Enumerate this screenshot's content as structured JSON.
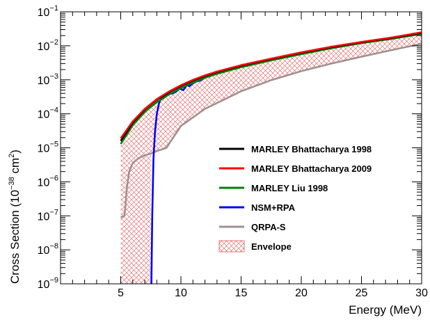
{
  "chart_data": {
    "type": "line",
    "xlabel": "Energy (MeV)",
    "ylabel": "Cross Section (10⁻³⁸ cm²)",
    "ylabel_parts": {
      "main": "Cross Section (10",
      "exp1": "−38",
      "mid": " cm",
      "exp2": "2",
      "end": ")"
    },
    "xlim": [
      0,
      30
    ],
    "ylim": [
      1e-09,
      0.1
    ],
    "y_scale": "log",
    "x_ticks": [
      5,
      10,
      15,
      20,
      25,
      30
    ],
    "y_ticks": [
      {
        "base": "10",
        "exp": "−9",
        "value": 1e-09
      },
      {
        "base": "10",
        "exp": "−8",
        "value": 1e-08
      },
      {
        "base": "10",
        "exp": "−7",
        "value": 1e-07
      },
      {
        "base": "10",
        "exp": "−6",
        "value": 1e-06
      },
      {
        "base": "10",
        "exp": "−5",
        "value": 1e-05
      },
      {
        "base": "10",
        "exp": "−4",
        "value": 0.0001
      },
      {
        "base": "10",
        "exp": "−3",
        "value": 0.001
      },
      {
        "base": "10",
        "exp": "−2",
        "value": 0.01
      },
      {
        "base": "10",
        "exp": "−1",
        "value": 0.1
      }
    ],
    "grid": false,
    "legend_position": "right-middle",
    "envelope": {
      "name": "Envelope",
      "color": "#e05050",
      "upper": {
        "x": [
          5,
          6,
          7,
          8,
          9,
          10,
          11,
          12,
          13,
          15,
          17.5,
          20,
          22.5,
          25,
          27.5,
          30
        ],
        "y": [
          1.9e-05,
          6e-05,
          0.00014,
          0.00027,
          0.00045,
          0.00069,
          0.001,
          0.00135,
          0.00175,
          0.0027,
          0.0042,
          0.0064,
          0.0094,
          0.013,
          0.0175,
          0.025
        ]
      },
      "lower": {
        "x": [
          5,
          7.5,
          7.5,
          8,
          8.8,
          10,
          12,
          15,
          17.5,
          20,
          22.5,
          25,
          27.5,
          30
        ],
        "y": [
          1e-09,
          1e-09,
          6.8e-06,
          8e-06,
          1e-05,
          4.4e-05,
          0.00014,
          0.00046,
          0.00098,
          0.0018,
          0.003,
          0.0048,
          0.0075,
          0.0115
        ]
      }
    },
    "series": [
      {
        "name": "MARLEY Bhattacharya 1998",
        "color": "#000000",
        "x": [
          5,
          6,
          7,
          8,
          9,
          10,
          11,
          12,
          13,
          15,
          17.5,
          20,
          22.5,
          25,
          27.5,
          30
        ],
        "y": [
          1.6e-05,
          5.5e-05,
          0.000135,
          0.00026,
          0.00043,
          0.00066,
          0.00095,
          0.0013,
          0.0017,
          0.0026,
          0.0041,
          0.0062,
          0.0091,
          0.0127,
          0.017,
          0.024
        ]
      },
      {
        "name": "MARLEY Bhattacharya 2009",
        "color": "#ff0000",
        "x": [
          5,
          6,
          7,
          8,
          9,
          10,
          11,
          12,
          13,
          15,
          17.5,
          20,
          22.5,
          25,
          27.5,
          30
        ],
        "y": [
          1.9e-05,
          6e-05,
          0.00014,
          0.00027,
          0.00045,
          0.00069,
          0.001,
          0.00135,
          0.00175,
          0.0027,
          0.0042,
          0.0064,
          0.0094,
          0.013,
          0.0175,
          0.025
        ]
      },
      {
        "name": "MARLEY Liu 1998",
        "color": "#008000",
        "x": [
          5,
          6,
          7,
          8,
          9,
          10,
          11,
          12,
          13,
          15,
          17.5,
          20,
          22.5,
          25,
          27.5,
          30
        ],
        "y": [
          1.3e-05,
          4.6e-05,
          0.000115,
          0.00022,
          0.00037,
          0.00057,
          0.00083,
          0.00115,
          0.0015,
          0.00235,
          0.00375,
          0.0057,
          0.0085,
          0.012,
          0.016,
          0.0225
        ]
      },
      {
        "name": "NSM+RPA",
        "color": "#0000ff",
        "x": [
          7.55,
          7.62,
          7.72,
          7.85,
          8.0,
          8.2,
          8.4,
          8.6,
          8.8,
          9.0,
          9.3,
          9.6,
          9.9,
          10.2,
          10.5,
          10.7,
          11.0,
          11.3,
          11.6,
          12.0,
          12.5,
          13,
          14,
          15,
          17.5,
          20,
          22.5,
          25,
          27.5,
          30
        ],
        "y": [
          1e-09,
          1e-07,
          5e-06,
          3e-05,
          0.0001,
          0.00022,
          0.0003,
          0.00034,
          0.00036,
          0.00038,
          0.0004,
          0.00045,
          0.00055,
          0.0005,
          0.0007,
          0.00065,
          0.0008,
          0.0009,
          0.00095,
          0.00115,
          0.00135,
          0.0016,
          0.0021,
          0.0026,
          0.0041,
          0.0063,
          0.0092,
          0.0128,
          0.0175,
          0.0245
        ]
      },
      {
        "name": "QRPA-S",
        "color": "#a09090",
        "x": [
          5,
          5.3,
          5.4,
          5.5,
          5.7,
          6.0,
          6.5,
          7.0,
          7.5,
          8.0,
          8.8,
          10,
          12,
          15,
          17.5,
          20,
          22.5,
          25,
          27.5,
          30
        ],
        "y": [
          9e-08,
          1e-07,
          2e-07,
          6e-07,
          2e-06,
          3.6e-06,
          5e-06,
          6e-06,
          6.8e-06,
          8e-06,
          1e-05,
          4.4e-05,
          0.00014,
          0.00046,
          0.00098,
          0.0018,
          0.003,
          0.0048,
          0.0075,
          0.0115
        ]
      }
    ]
  }
}
